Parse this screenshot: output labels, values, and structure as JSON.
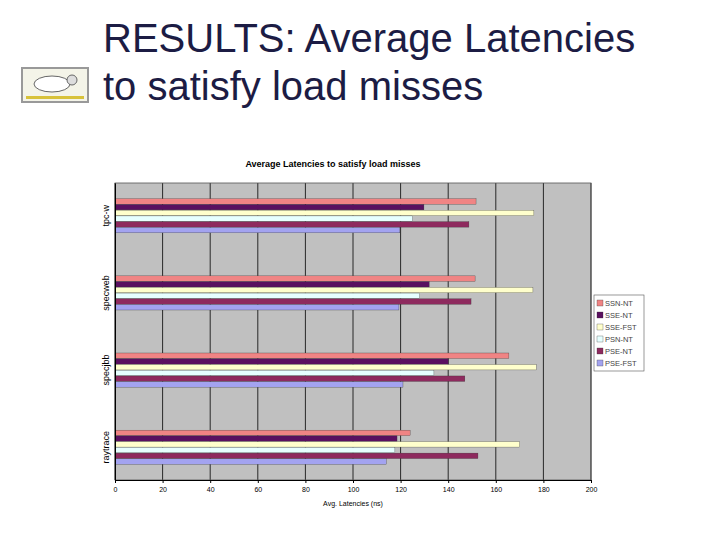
{
  "heading": "RESULTS: Average Latencies to satisfy load misses",
  "chart_data": {
    "type": "bar",
    "orientation": "horizontal",
    "title": "Average Latencies to satisfy load misses",
    "x_label": "Avg. Latencies (ns)",
    "categories": [
      "tpc-w",
      "specweb",
      "specjbb",
      "raytrace"
    ],
    "series": [
      {
        "name": "SSN-NT",
        "color": "#f08484",
        "values": [
          151.7,
          151.3,
          165.5,
          124
        ]
      },
      {
        "name": "SSE-NT",
        "color": "#5a1060",
        "values": [
          129.8,
          132,
          140,
          118.5
        ]
      },
      {
        "name": "SSE-FST",
        "color": "#ffffcc",
        "values": [
          176,
          175.6,
          177,
          170
        ]
      },
      {
        "name": "PSN-NT",
        "color": "#e6ffff",
        "values": [
          125,
          128,
          134,
          117.6
        ]
      },
      {
        "name": "PSE-NT",
        "color": "#8e2a5e",
        "values": [
          148.7,
          149.6,
          147,
          152.5
        ]
      },
      {
        "name": "PSE-FST",
        "color": "#a3a3f0",
        "values": [
          119.7,
          119.3,
          121,
          114
        ]
      }
    ],
    "xlim": [
      0,
      200
    ],
    "xticks": [
      0,
      20,
      40,
      60,
      80,
      100,
      120,
      140,
      160,
      180,
      200
    ],
    "grid": true,
    "legend": "right"
  }
}
